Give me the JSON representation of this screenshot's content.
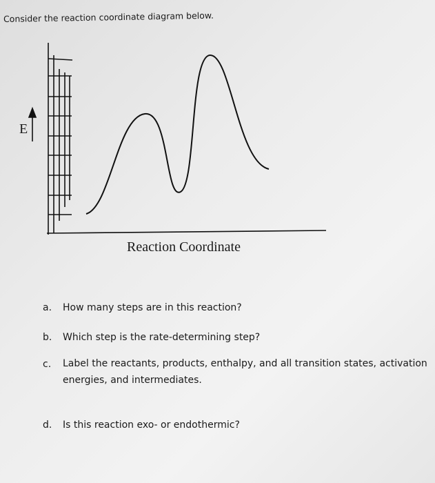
{
  "intro": "Consider the reaction coordinate diagram below.",
  "diagram": {
    "y_label": "E",
    "x_label": "Reaction Coordinate"
  },
  "questions": [
    {
      "letter": "a.",
      "text": "How many steps are in this reaction?"
    },
    {
      "letter": "b.",
      "text": "Which step is the rate-determining step?"
    },
    {
      "letter": "c.",
      "text": "Label the reactants, products, enthalpy, and all transition states, activation energies, and intermediates."
    },
    {
      "letter": "d.",
      "text": "Is this reaction exo- or endothermic?"
    }
  ]
}
